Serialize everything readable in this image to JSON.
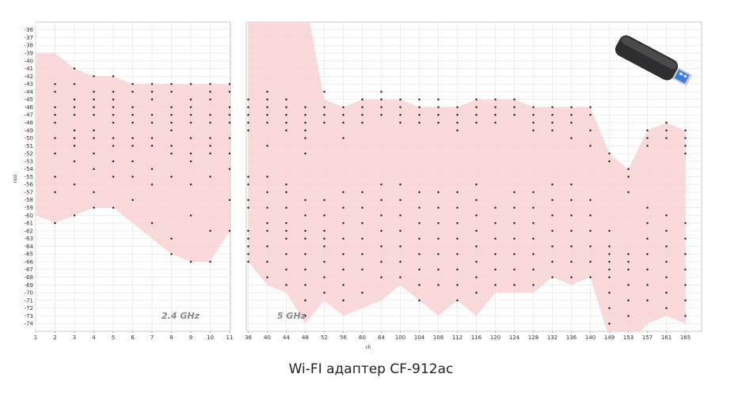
{
  "caption": "Wi-FI адаптер CF-912ac",
  "chart_data": {
    "type": "scatter",
    "xlabel": "ch",
    "ylabel": "rssi",
    "ylim": [
      -75,
      -35
    ],
    "grid": true,
    "fill_color": "#f9d2d4",
    "point_color": "#2b2b2b",
    "panels": [
      {
        "label": "2.4 GHz",
        "ticks": [
          "1",
          "2",
          "3",
          "4",
          "5",
          "6",
          "7",
          "8",
          "9",
          "10",
          "11"
        ],
        "envelope_upper": [
          -39,
          -39,
          -41,
          -42,
          -42,
          -43,
          -43,
          -43,
          -43,
          -43,
          -43
        ],
        "envelope_lower": [
          -60,
          -61,
          -60,
          -59,
          -59,
          -61,
          -63,
          -65,
          -66,
          -66,
          -62
        ],
        "columns": [
          {
            "x": "2",
            "points": [
              -43,
              -44,
              -46,
              -47,
              -48,
              -50,
              -52,
              -55,
              -57,
              -61
            ]
          },
          {
            "x": "3",
            "points": [
              -41,
              -43,
              -45,
              -46,
              -47,
              -49,
              -50,
              -51,
              -53,
              -56,
              -60
            ]
          },
          {
            "x": "4",
            "points": [
              -42,
              -44,
              -45,
              -46,
              -47,
              -49,
              -50,
              -52,
              -54,
              -57,
              -59
            ]
          },
          {
            "x": "5",
            "points": [
              -42,
              -44,
              -45,
              -46,
              -47,
              -48,
              -50,
              -51,
              -53,
              -55,
              -59
            ]
          },
          {
            "x": "6",
            "points": [
              -43,
              -44,
              -46,
              -47,
              -48,
              -50,
              -51,
              -53,
              -55,
              -58
            ]
          },
          {
            "x": "7",
            "points": [
              -43,
              -44,
              -45,
              -47,
              -48,
              -50,
              -51,
              -54,
              -56,
              -61
            ]
          },
          {
            "x": "8",
            "points": [
              -43,
              -44,
              -46,
              -47,
              -48,
              -49,
              -51,
              -52,
              -55,
              -63,
              -65
            ]
          },
          {
            "x": "9",
            "points": [
              -43,
              -45,
              -46,
              -47,
              -48,
              -50,
              -52,
              -53,
              -56,
              -60,
              -66
            ]
          },
          {
            "x": "10",
            "points": [
              -43,
              -44,
              -45,
              -47,
              -48,
              -50,
              -51,
              -52,
              -55,
              -62,
              -66
            ]
          },
          {
            "x": "11",
            "points": [
              -43,
              -44,
              -46,
              -47,
              -48,
              -50,
              -52,
              -54,
              -58,
              -62
            ]
          }
        ]
      },
      {
        "label": "5 GHz",
        "ticks": [
          "36",
          "40",
          "44",
          "48",
          "52",
          "56",
          "60",
          "64",
          "100",
          "104",
          "108",
          "112",
          "116",
          "120",
          "124",
          "128",
          "132",
          "136",
          "140",
          "149",
          "153",
          "157",
          "161",
          "165"
        ],
        "envelope_upper": [
          -32,
          -32,
          -32,
          -32,
          -45,
          -46,
          -45,
          -45,
          -45,
          -46,
          -46,
          -46,
          -45,
          -45,
          -45,
          -46,
          -46,
          -46,
          -46,
          -52,
          -54,
          -49,
          -48,
          -49
        ],
        "envelope_lower": [
          -66,
          -69,
          -70,
          -74,
          -71,
          -73,
          -72,
          -71,
          -69,
          -71,
          -73,
          -71,
          -73,
          -70,
          -70,
          -70,
          -68,
          -69,
          -68,
          -76,
          -77,
          -74,
          -73,
          -74
        ],
        "columns": [
          {
            "x": "36",
            "points": [
              -45,
              -46,
              -47,
              -48,
              -49,
              -55,
              -56,
              -58,
              -59,
              -62,
              -63,
              -64,
              -65,
              -66
            ]
          },
          {
            "x": "40",
            "points": [
              -44,
              -45,
              -46,
              -47,
              -48,
              -51,
              -55,
              -57,
              -59,
              -61,
              -62,
              -64,
              -66,
              -68
            ]
          },
          {
            "x": "44",
            "points": [
              -45,
              -46,
              -47,
              -48,
              -49,
              -56,
              -57,
              -59,
              -61,
              -62,
              -63,
              -65,
              -67,
              -69
            ]
          },
          {
            "x": "48",
            "points": [
              -46,
              -47,
              -48,
              -49,
              -50,
              -52,
              -58,
              -60,
              -62,
              -63,
              -65,
              -67,
              -69,
              -71,
              -73
            ]
          },
          {
            "x": "52",
            "points": [
              -44,
              -46,
              -47,
              -48,
              -58,
              -60,
              -62,
              -63,
              -64,
              -66,
              -68,
              -70
            ]
          },
          {
            "x": "56",
            "points": [
              -46,
              -47,
              -48,
              -50,
              -57,
              -59,
              -61,
              -63,
              -65,
              -67,
              -69,
              -71
            ]
          },
          {
            "x": "60",
            "points": [
              -45,
              -46,
              -47,
              -48,
              -57,
              -59,
              -61,
              -63,
              -65,
              -67,
              -70
            ]
          },
          {
            "x": "64",
            "points": [
              -44,
              -45,
              -46,
              -47,
              -56,
              -58,
              -60,
              -62,
              -64,
              -66,
              -68
            ]
          },
          {
            "x": "100",
            "points": [
              -45,
              -46,
              -47,
              -48,
              -56,
              -58,
              -60,
              -62,
              -64,
              -66,
              -68
            ]
          },
          {
            "x": "104",
            "points": [
              -45,
              -46,
              -47,
              -48,
              -57,
              -59,
              -61,
              -63,
              -65,
              -67,
              -69,
              -71
            ]
          },
          {
            "x": "108",
            "points": [
              -45,
              -46,
              -47,
              -48,
              -57,
              -59,
              -61,
              -63,
              -65,
              -67,
              -69
            ]
          },
          {
            "x": "112",
            "points": [
              -46,
              -47,
              -48,
              -49,
              -57,
              -59,
              -61,
              -63,
              -65,
              -67,
              -69,
              -71
            ]
          },
          {
            "x": "116",
            "points": [
              -45,
              -46,
              -47,
              -48,
              -56,
              -58,
              -60,
              -62,
              -64,
              -66,
              -68,
              -70
            ]
          },
          {
            "x": "120",
            "points": [
              -45,
              -46,
              -47,
              -48,
              -59,
              -61,
              -63,
              -65,
              -67,
              -69
            ]
          },
          {
            "x": "124",
            "points": [
              -45,
              -46,
              -47,
              -57,
              -59,
              -61,
              -63,
              -65,
              -67,
              -69
            ]
          },
          {
            "x": "128",
            "points": [
              -46,
              -47,
              -48,
              -49,
              -57,
              -59,
              -61,
              -63,
              -65,
              -67,
              -69
            ]
          },
          {
            "x": "132",
            "points": [
              -46,
              -47,
              -48,
              -49,
              -56,
              -58,
              -60,
              -62,
              -64,
              -66,
              -68
            ]
          },
          {
            "x": "136",
            "points": [
              -46,
              -47,
              -48,
              -50,
              -56,
              -58,
              -60,
              -62,
              -64,
              -66,
              -68
            ]
          },
          {
            "x": "140",
            "points": [
              -46,
              -47,
              -49,
              -51,
              -58,
              -60,
              -62,
              -64,
              -66,
              -68
            ]
          },
          {
            "x": "149",
            "points": [
              -52,
              -53,
              -62,
              -64,
              -65,
              -66,
              -67,
              -68,
              -70,
              -72,
              -74
            ]
          },
          {
            "x": "153",
            "points": [
              -54,
              -55,
              -57,
              -65,
              -66,
              -67,
              -69,
              -71,
              -73
            ]
          },
          {
            "x": "157",
            "points": [
              -49,
              -50,
              -51,
              -59,
              -61,
              -63,
              -65,
              -67,
              -69,
              -71
            ]
          },
          {
            "x": "161",
            "points": [
              -48,
              -49,
              -50,
              -60,
              -62,
              -64,
              -66,
              -68,
              -70,
              -72
            ]
          },
          {
            "x": "165",
            "points": [
              -49,
              -50,
              -51,
              -52,
              -61,
              -63,
              -65,
              -67,
              -69,
              -71,
              -73
            ]
          }
        ]
      }
    ]
  }
}
